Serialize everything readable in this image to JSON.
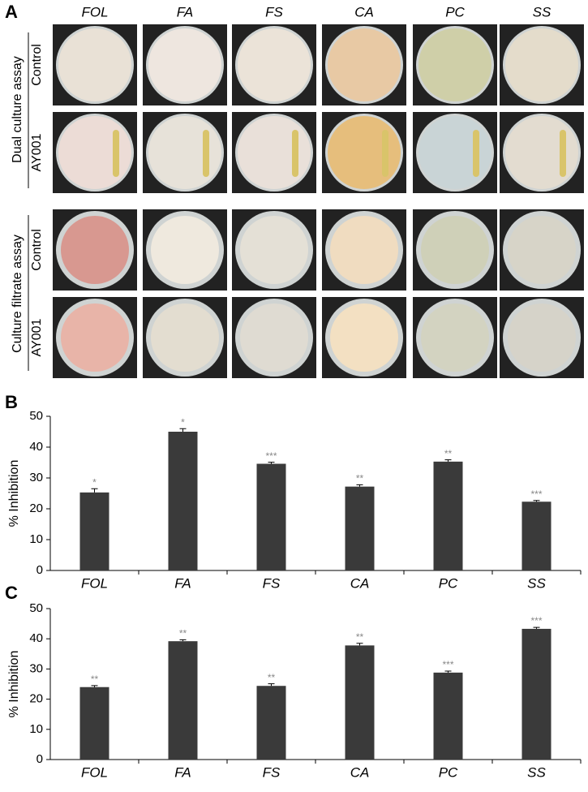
{
  "panel_a": {
    "label": "A",
    "columns": [
      "FOL",
      "FA",
      "FS",
      "CA",
      "PC",
      "SS"
    ],
    "groups": [
      {
        "title": "Dual culture assay",
        "rows": [
          "Control",
          "AY001"
        ]
      },
      {
        "title": "Culture filtrate assay",
        "rows": [
          "Control",
          "AY001"
        ]
      }
    ]
  },
  "chart_data": [
    {
      "type": "bar",
      "panel": "B",
      "y_label": "% Inhibition",
      "categories": [
        "FOL",
        "FA",
        "FS",
        "CA",
        "PC",
        "SS"
      ],
      "values": [
        25.3,
        45.0,
        34.6,
        27.2,
        35.3,
        22.3
      ],
      "errors": [
        1.2,
        1.0,
        0.5,
        0.6,
        0.6,
        0.4
      ],
      "significance": [
        "*",
        "*",
        "***",
        "**",
        "**",
        "***"
      ],
      "color": "#3a3a3a",
      "ylim": [
        0,
        50
      ],
      "yticks": [
        0,
        10,
        20,
        30,
        40,
        50
      ]
    },
    {
      "type": "bar",
      "panel": "C",
      "y_label": "% Inhibition",
      "categories": [
        "FOL",
        "FA",
        "FS",
        "CA",
        "PC",
        "SS"
      ],
      "values": [
        24.0,
        39.2,
        24.4,
        37.8,
        28.8,
        43.3
      ],
      "errors": [
        0.5,
        0.5,
        0.7,
        0.7,
        0.5,
        0.5
      ],
      "significance": [
        "**",
        "**",
        "**",
        "**",
        "***",
        "***"
      ],
      "color": "#3a3a3a",
      "ylim": [
        0,
        50
      ],
      "yticks": [
        0,
        10,
        20,
        30,
        40,
        50
      ]
    }
  ]
}
